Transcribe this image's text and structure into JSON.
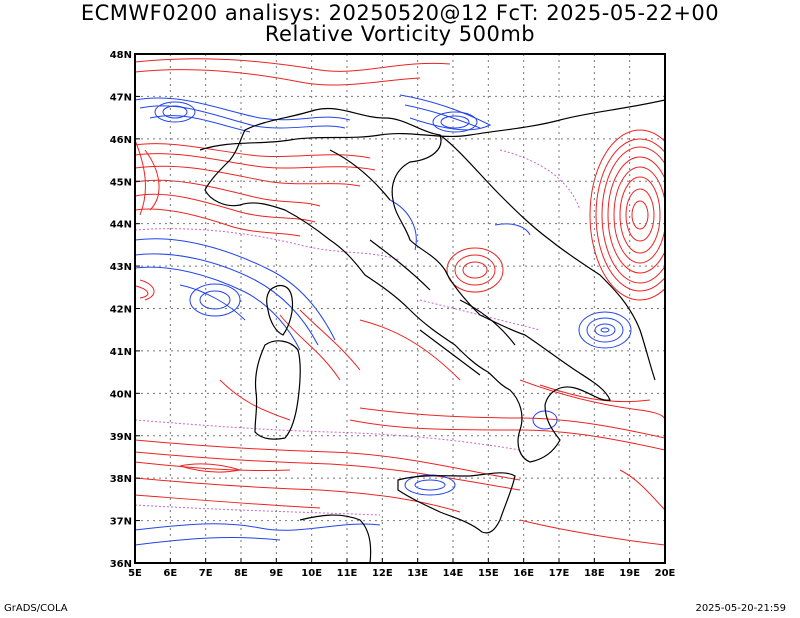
{
  "title_line1": "ECMWF0200 analisys: 20250520@12 FcT: 2025-05-22+00",
  "title_line2": "Relative Vorticity 500mb",
  "footer_left": "GrADS/COLA",
  "footer_right": "2025-05-20-21:59",
  "map": {
    "lon_range": [
      5,
      20
    ],
    "lat_range": [
      36,
      48
    ],
    "lon_labels": [
      "5E",
      "6E",
      "7E",
      "8E",
      "9E",
      "10E",
      "11E",
      "12E",
      "13E",
      "14E",
      "15E",
      "16E",
      "17E",
      "18E",
      "19E",
      "20E"
    ],
    "lat_labels": [
      "36N",
      "37N",
      "38N",
      "39N",
      "40N",
      "41N",
      "42N",
      "43N",
      "44N",
      "45N",
      "46N",
      "47N",
      "48N"
    ],
    "grid": "dotted",
    "colors": {
      "positive_contour": "#ee2222",
      "negative_contour": "#2244ee",
      "zero_contour": "#cc66cc",
      "coastline": "#000000",
      "gridline": "#777777"
    }
  }
}
